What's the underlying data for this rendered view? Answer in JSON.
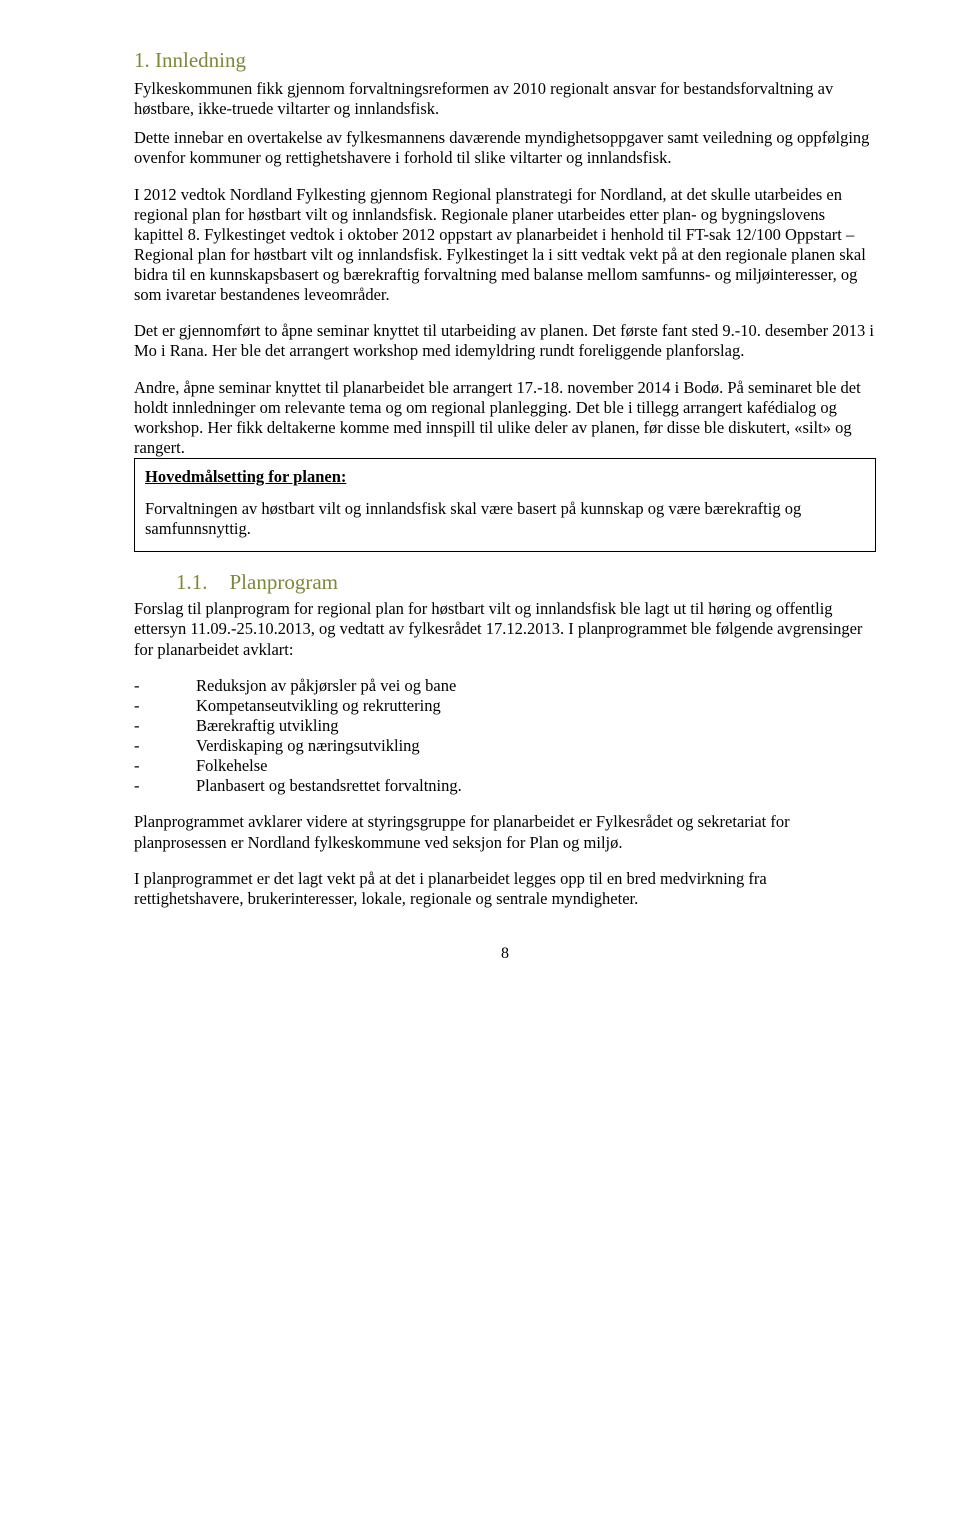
{
  "colors": {
    "heading": "#7a8a3a",
    "text": "#000000",
    "background": "#ffffff",
    "box_border": "#000000"
  },
  "typography": {
    "body_family": "Times New Roman",
    "body_size_pt": 12,
    "heading_size_pt": 16
  },
  "h1": {
    "num": "1.",
    "title": "Innledning"
  },
  "p1": "Fylkeskommunen fikk gjennom forvaltningsreformen av 2010 regionalt ansvar for bestandsforvaltning av høstbare, ikke-truede viltarter og innlandsfisk.",
  "p2": "Dette innebar en overtakelse av fylkesmannens daværende myndighetsoppgaver samt veiledning og oppfølging ovenfor kommuner og rettighetshavere i forhold til slike viltarter og innlandsfisk.",
  "p3": "I 2012 vedtok Nordland Fylkesting gjennom Regional planstrategi for Nordland, at det skulle utarbeides en regional plan for høstbart vilt og innlandsfisk. Regionale planer utarbeides etter plan- og bygningslovens kapittel 8. Fylkestinget vedtok i oktober 2012 oppstart av planarbeidet i henhold til FT-sak 12/100 Oppstart – Regional plan for høstbart vilt og innlandsfisk. Fylkestinget la i sitt vedtak vekt på at den regionale planen skal bidra til en kunnskapsbasert og bærekraftig forvaltning med balanse mellom samfunns- og miljøinteresser, og som ivaretar bestandenes leveområder.",
  "p4": "Det er gjennomført to åpne seminar knyttet til utarbeiding av planen. Det første fant sted 9.-10. desember 2013 i Mo i Rana. Her ble det arrangert workshop med idemyldring rundt foreliggende planforslag.",
  "p5": "Andre, åpne seminar knyttet til planarbeidet ble arrangert 17.-18. november 2014 i Bodø. På seminaret ble det holdt innledninger om relevante tema og om regional planlegging. Det ble i tillegg arrangert kafédialog og workshop. Her fikk deltakerne komme med innspill til ulike deler av planen, før disse ble diskutert, «silt» og rangert.",
  "box": {
    "title": "Hovedmålsetting for planen:",
    "text": "Forvaltningen av høstbart vilt og innlandsfisk skal være basert på kunnskap og være bærekraftig og samfunnsnyttig."
  },
  "h2": {
    "num": "1.1.",
    "title": "Planprogram"
  },
  "p6": "Forslag til planprogram for regional plan for høstbart vilt og innlandsfisk ble lagt ut til høring og offentlig ettersyn 11.09.-25.10.2013, og vedtatt av fylkesrådet 17.12.2013. I planprogrammet ble følgende avgrensinger for planarbeidet avklart:",
  "list": [
    "Reduksjon av påkjørsler på vei og bane",
    "Kompetanseutvikling og rekruttering",
    "Bærekraftig utvikling",
    "Verdiskaping og næringsutvikling",
    "Folkehelse",
    "Planbasert og bestandsrettet forvaltning."
  ],
  "p7": "Planprogrammet avklarer videre at styringsgruppe for planarbeidet er Fylkesrådet og sekretariat for planprosessen er Nordland fylkeskommune ved seksjon for Plan og miljø.",
  "p8": "I planprogrammet er det lagt vekt på at det i planarbeidet legges opp til en bred medvirkning fra rettighetshavere, brukerinteresser, lokale, regionale og sentrale myndigheter.",
  "page_number": "8"
}
